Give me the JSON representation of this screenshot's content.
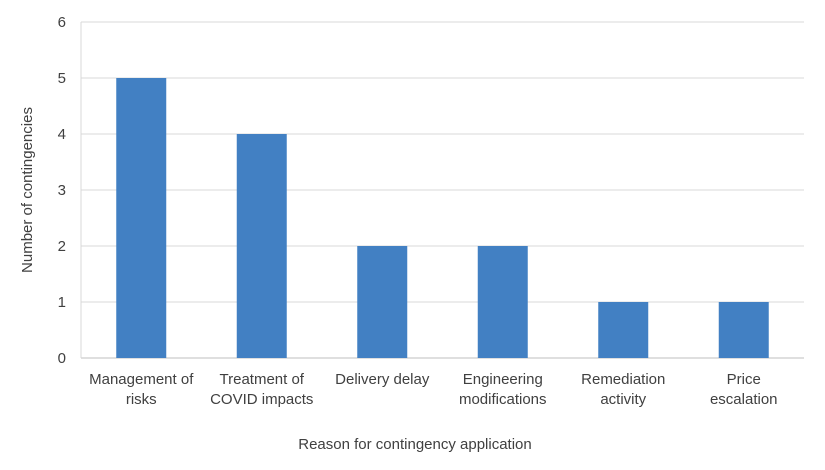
{
  "chart_data": {
    "type": "bar",
    "title": "",
    "xlabel": "Reason for contingency application",
    "ylabel": "Number of contingencies",
    "categories": [
      [
        "Management of",
        "risks"
      ],
      [
        "Treatment of",
        "COVID impacts"
      ],
      [
        "Delivery delay"
      ],
      [
        "Engineering",
        "modifications"
      ],
      [
        "Remediation",
        "activity"
      ],
      [
        "Price",
        "escalation"
      ]
    ],
    "values": [
      5,
      4,
      2,
      2,
      1,
      1
    ],
    "ylim": [
      0,
      6
    ],
    "yticks": [
      "0",
      "1",
      "2",
      "3",
      "4",
      "5",
      "6"
    ],
    "grid": true,
    "legend": "none",
    "colors": {
      "bar": "#4280C3",
      "grid": "#D9D9D9",
      "text": "#404040"
    }
  }
}
